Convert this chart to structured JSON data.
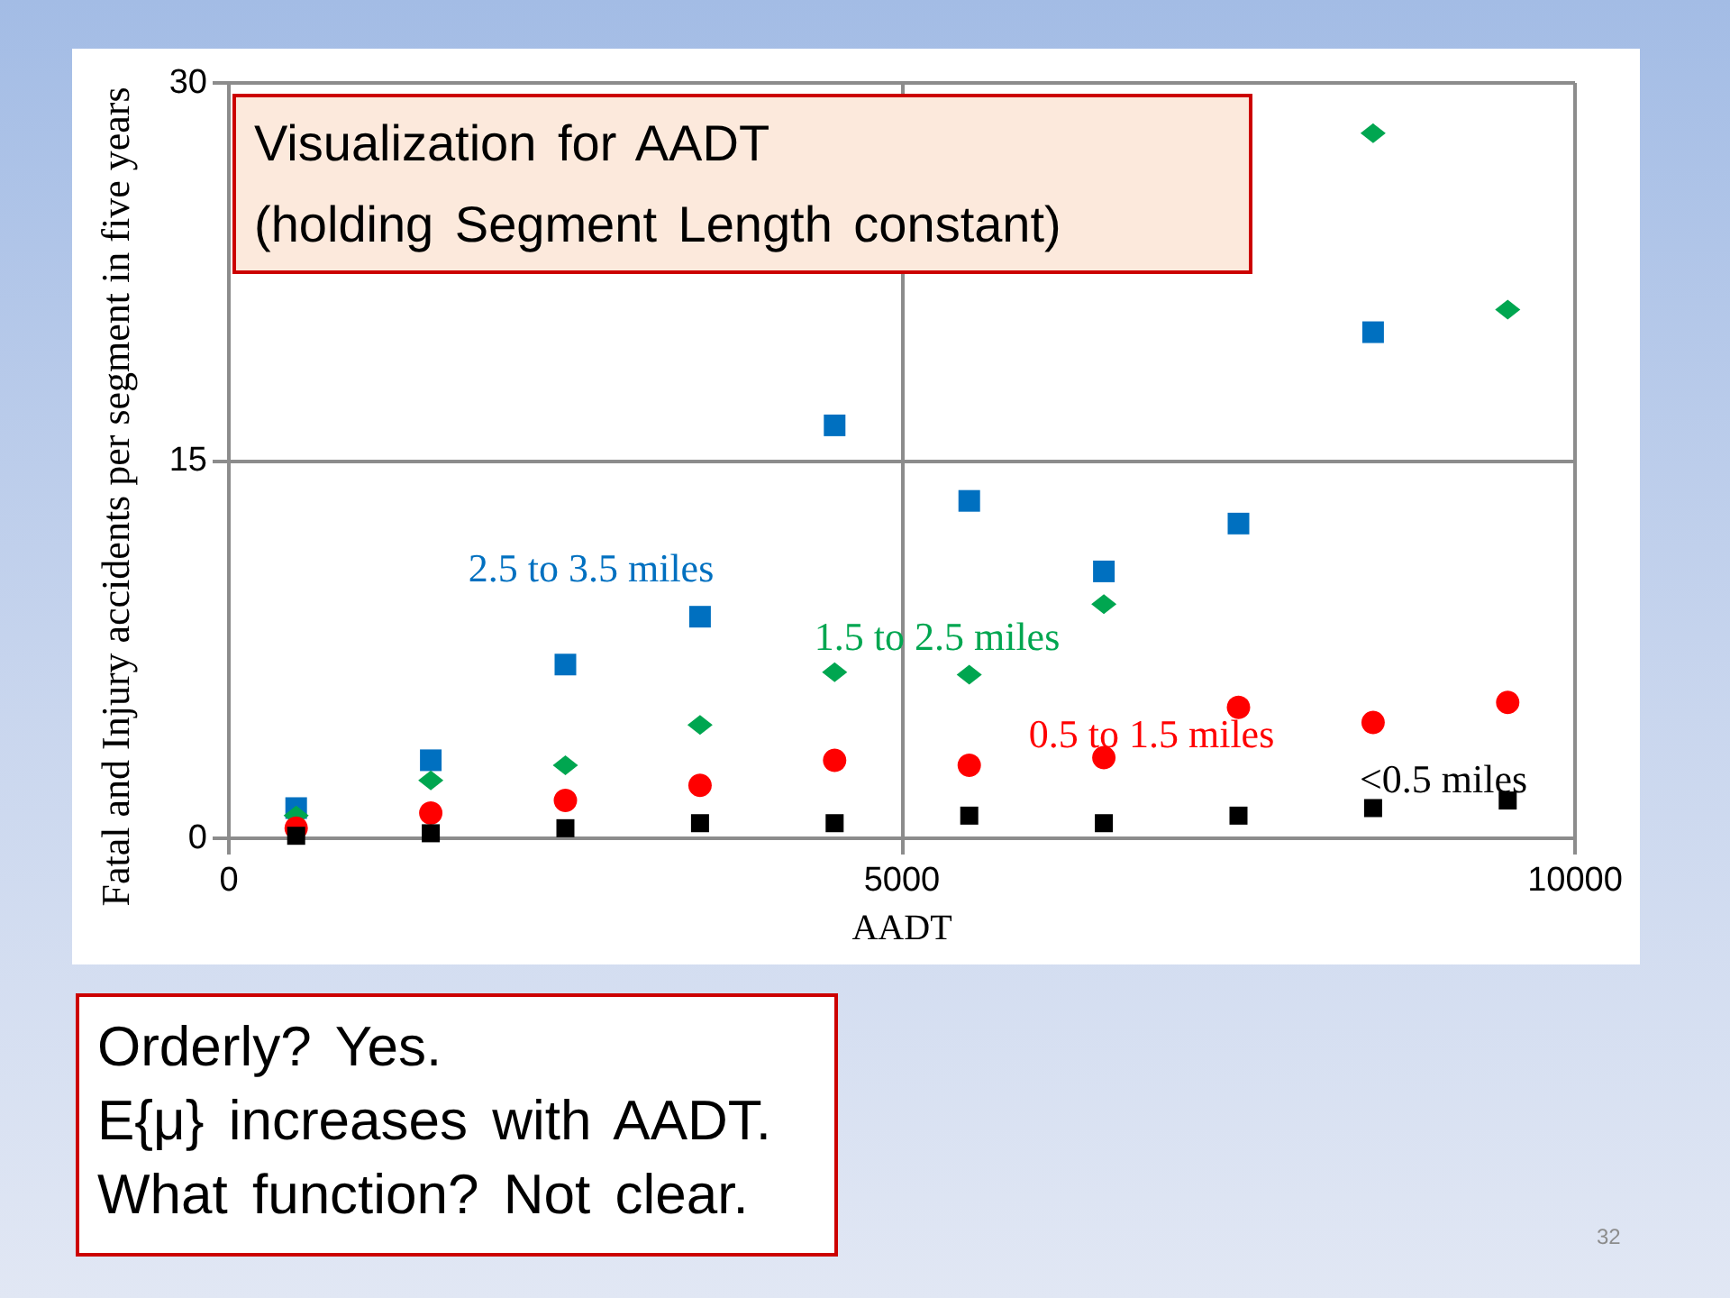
{
  "chart_data": {
    "type": "scatter",
    "title": "Visualization for AADT",
    "subtitle": "(holding Segment Length constant)",
    "xlabel": "AADT",
    "ylabel": "Fatal and Injury accidents per segment in five years",
    "x": [
      500,
      1500,
      2500,
      3500,
      4500,
      5500,
      6500,
      7500,
      8500,
      9500
    ],
    "series": [
      {
        "name": "2.5 to 3.5 miles",
        "color": "#0070c0",
        "marker": "square",
        "values": [
          1.2,
          3.1,
          6.9,
          8.8,
          16.4,
          13.4,
          10.6,
          12.5,
          20.1,
          null
        ]
      },
      {
        "name": "1.5 to 2.5 miles",
        "color": "#00a650",
        "marker": "diamond",
        "values": [
          0.9,
          2.3,
          2.9,
          4.5,
          6.6,
          6.5,
          9.3,
          null,
          28.0,
          21.0
        ]
      },
      {
        "name": "0.5 to 1.5 miles",
        "color": "#ff0000",
        "marker": "circle",
        "values": [
          0.4,
          1.0,
          1.5,
          2.1,
          3.1,
          2.9,
          3.2,
          5.2,
          4.6,
          5.4
        ]
      },
      {
        "name": "<0.5 miles",
        "color": "#000000",
        "marker": "square",
        "values": [
          0.1,
          0.2,
          0.4,
          0.6,
          0.6,
          0.9,
          0.6,
          0.9,
          1.2,
          1.5
        ]
      }
    ],
    "xlim": [
      0,
      10000
    ],
    "xticks": [
      0,
      5000,
      10000
    ],
    "ylim": [
      0,
      30
    ],
    "yticks": [
      0,
      15,
      30
    ],
    "grid": true,
    "annotations": [
      "Orderly? Yes.",
      "E{μ} increases with AADT.",
      "What function? Not clear.",
      "32"
    ]
  }
}
